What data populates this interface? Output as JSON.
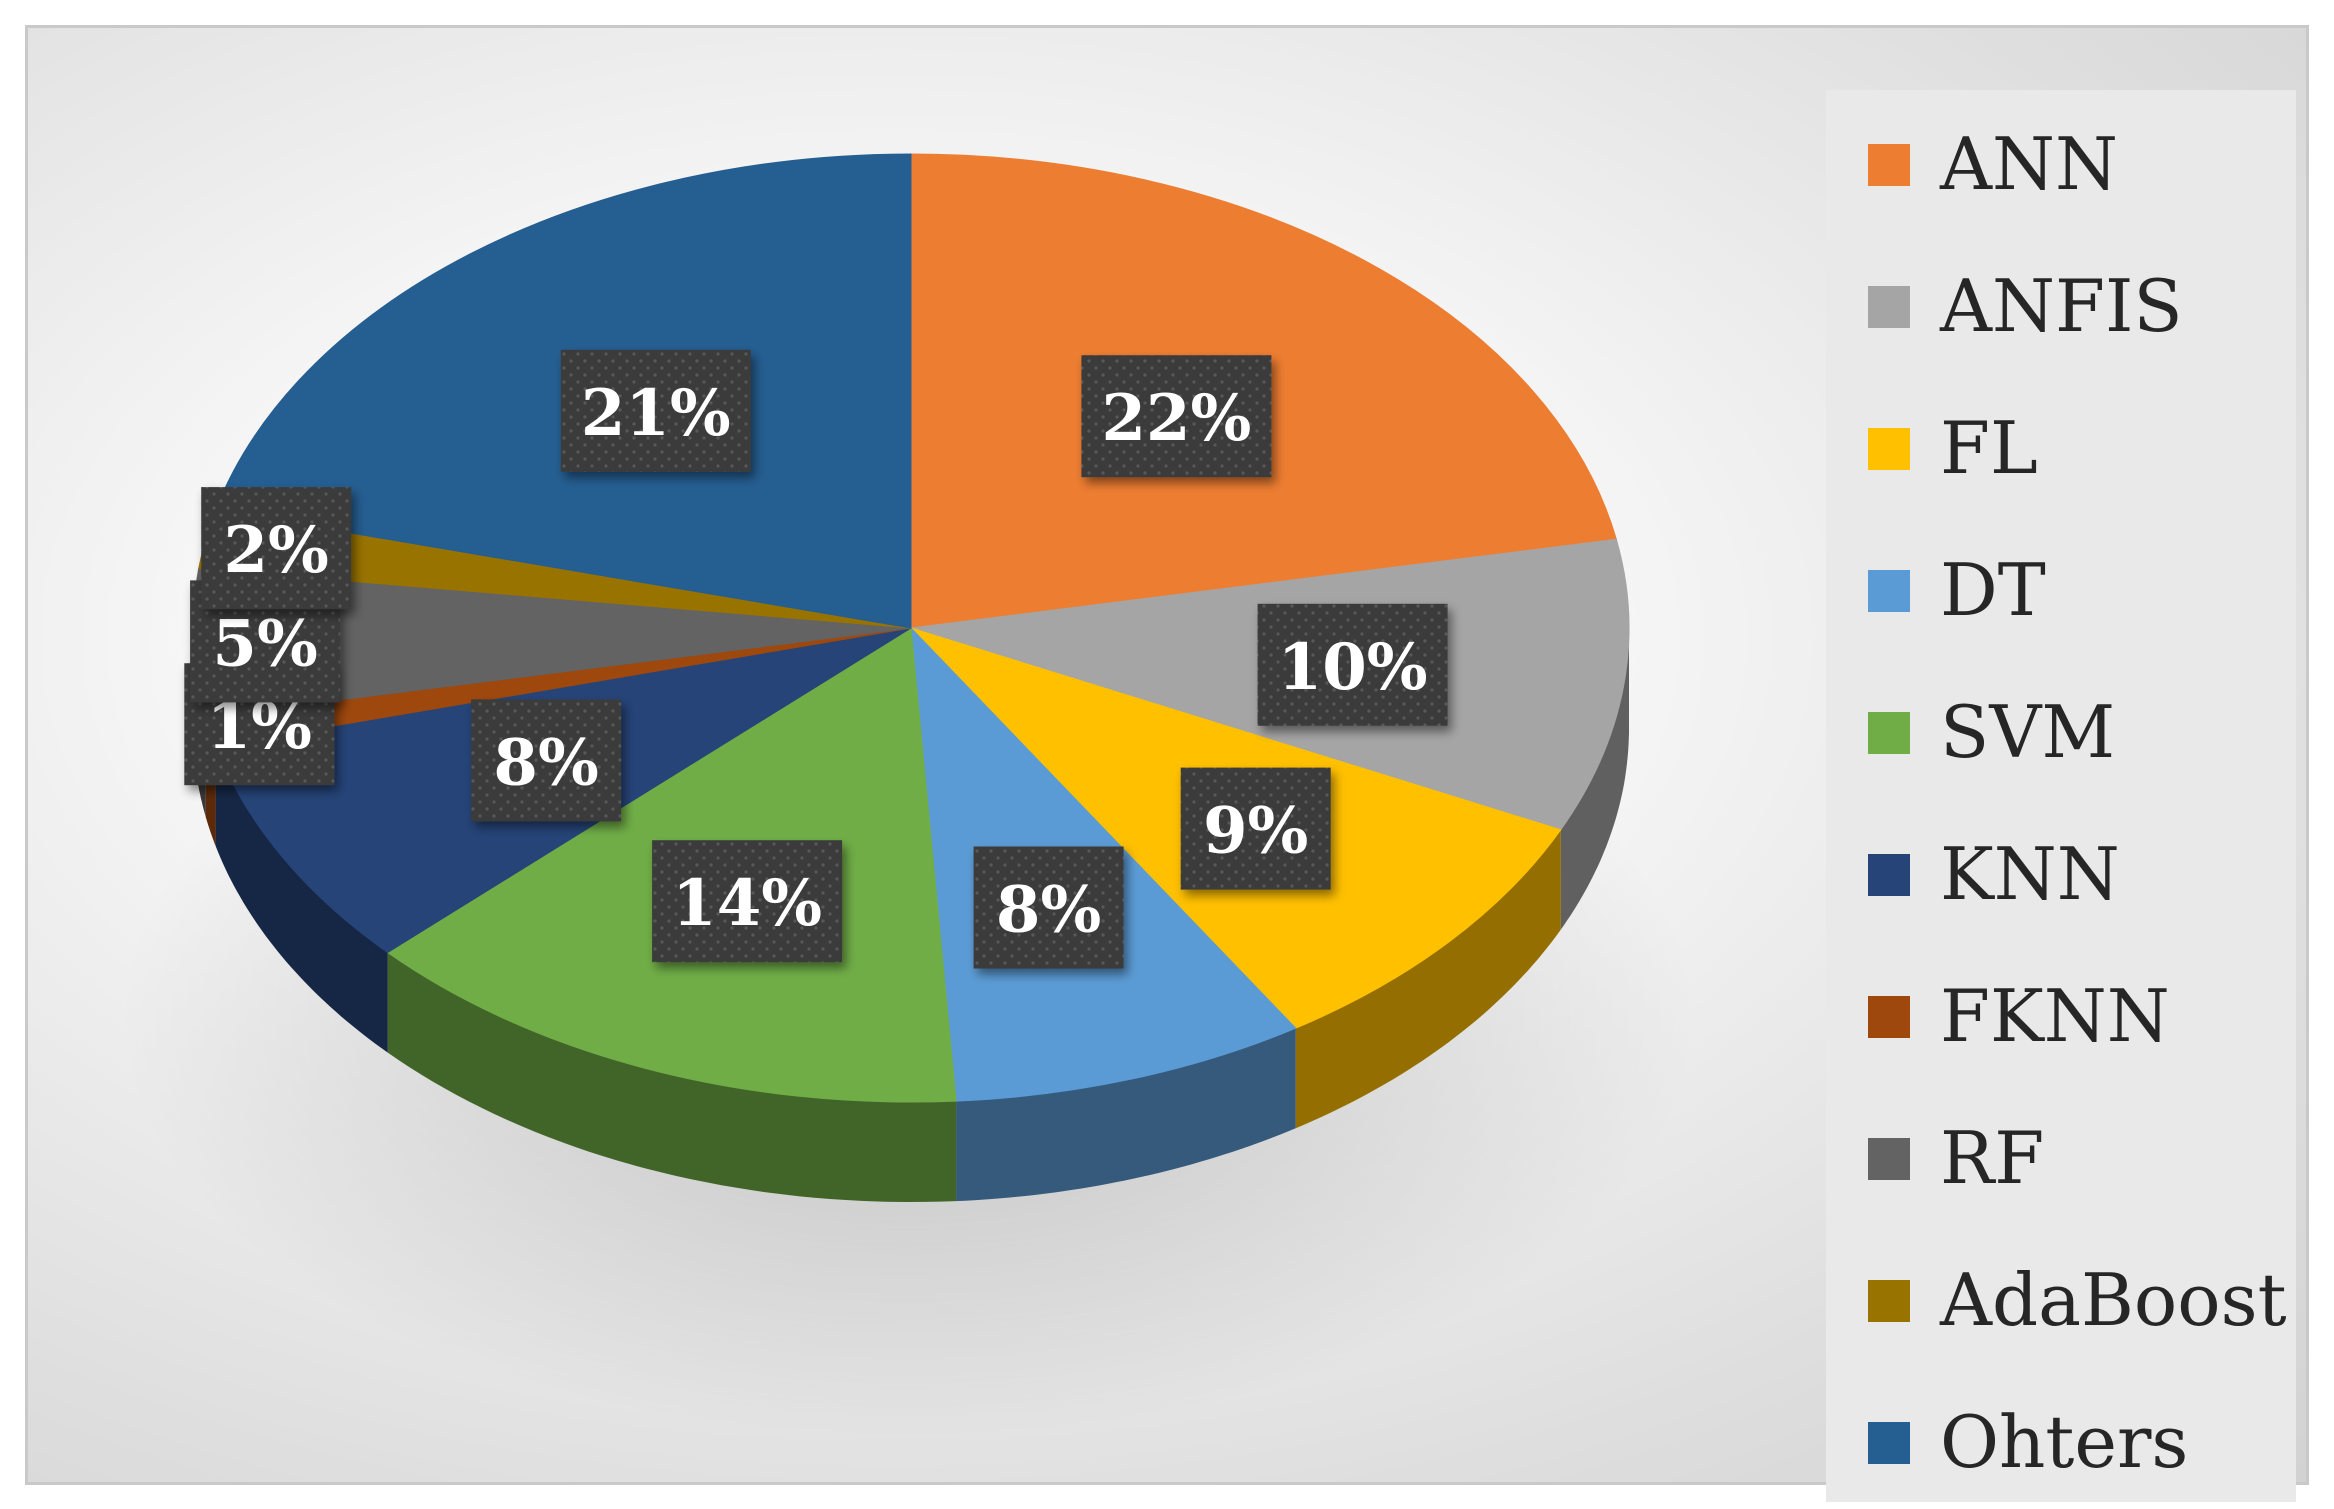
{
  "chart_data": {
    "type": "pie",
    "style": "3d",
    "title": "",
    "legend_position": "right",
    "data_labels_percent": true,
    "categories": [
      "ANN",
      "ANFIS",
      "FL",
      "DT",
      "SVM",
      "KNN",
      "FKNN",
      "RF",
      "AdaBoost",
      "Ohters"
    ],
    "values": [
      22,
      10,
      9,
      8,
      14,
      8,
      1,
      5,
      2,
      21
    ],
    "labels": [
      "22%",
      "10%",
      "9%",
      "8%",
      "14%",
      "8%",
      "1%",
      "5%",
      "2%",
      "21%"
    ],
    "colors": [
      "#ED7D31",
      "#A5A5A5",
      "#FFC000",
      "#5B9BD5",
      "#70AD47",
      "#264478",
      "#9E480E",
      "#636363",
      "#997300",
      "#255E91"
    ]
  }
}
